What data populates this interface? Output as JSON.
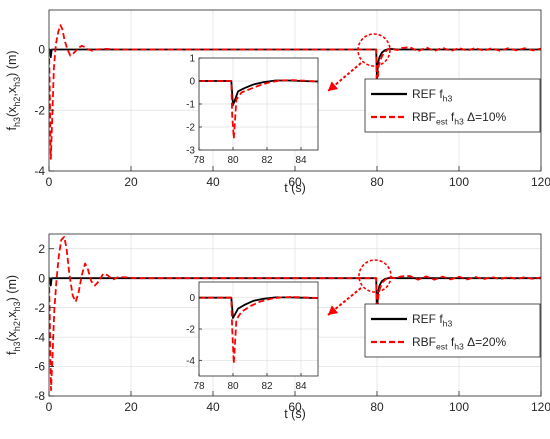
{
  "chart_data": [
    {
      "type": "line",
      "xlabel": "t (s)",
      "ylabel_parts": [
        "f",
        "h3",
        "(x",
        "h2",
        ",x",
        "h3",
        ") (m)"
      ],
      "xlim": [
        0,
        120
      ],
      "ylim": [
        -4,
        1.3
      ],
      "xticks": [
        0,
        20,
        40,
        60,
        80,
        100,
        120
      ],
      "yticks": [
        -4,
        -2,
        0
      ],
      "grid": true,
      "legend_position": "right",
      "series": [
        {
          "name_parts": [
            "REF f",
            "h3",
            ""
          ],
          "color": "#000000",
          "style": "solid",
          "points": [
            [
              0,
              0
            ],
            [
              0.2,
              0
            ],
            [
              0.45,
              -0.25
            ],
            [
              0.65,
              0
            ],
            [
              79.8,
              0
            ],
            [
              79.85,
              -0.3
            ],
            [
              80.0,
              -1.0
            ],
            [
              80.25,
              -0.45
            ],
            [
              80.6,
              -0.25
            ],
            [
              81.2,
              -0.1
            ],
            [
              82,
              -0.02
            ],
            [
              83,
              0.02
            ],
            [
              84,
              0.01
            ],
            [
              85,
              0
            ],
            [
              120,
              0
            ]
          ]
        },
        {
          "name_parts": [
            "RBF",
            "est",
            " f",
            "h3",
            " Δ=10%"
          ],
          "color": "#ff0000",
          "style": "dashed",
          "points": [
            [
              0,
              0
            ],
            [
              0.15,
              -1.0
            ],
            [
              0.45,
              -3.6
            ],
            [
              0.8,
              -2.2
            ],
            [
              1.2,
              -0.6
            ],
            [
              1.7,
              0.2
            ],
            [
              2.3,
              0.6
            ],
            [
              2.8,
              0.8
            ],
            [
              3.3,
              0.65
            ],
            [
              3.8,
              0.3
            ],
            [
              4.5,
              0
            ],
            [
              5.2,
              -0.2
            ],
            [
              5.8,
              -0.15
            ],
            [
              6.5,
              -0.05
            ],
            [
              7.2,
              0.05
            ],
            [
              8.0,
              0.12
            ],
            [
              8.8,
              0.08
            ],
            [
              9.6,
              0
            ],
            [
              10.5,
              -0.04
            ],
            [
              11.5,
              0
            ],
            [
              14,
              0.02
            ],
            [
              17,
              0
            ],
            [
              79.8,
              0
            ],
            [
              79.85,
              -0.5
            ],
            [
              80.05,
              -2.2
            ],
            [
              80.3,
              -0.6
            ],
            [
              80.7,
              -0.4
            ],
            [
              81.3,
              -0.2
            ],
            [
              82,
              -0.08
            ],
            [
              82.8,
              0.02
            ],
            [
              83.5,
              0.04
            ],
            [
              84.3,
              0
            ],
            [
              85,
              -0.02
            ],
            [
              86,
              0.05
            ],
            [
              88,
              0.08
            ],
            [
              90,
              -0.06
            ],
            [
              92,
              0.07
            ],
            [
              94,
              -0.05
            ],
            [
              96,
              0.06
            ],
            [
              98,
              -0.05
            ],
            [
              100,
              0.05
            ],
            [
              102,
              -0.04
            ],
            [
              104,
              0.05
            ],
            [
              106,
              -0.04
            ],
            [
              108,
              0.04
            ],
            [
              110,
              -0.04
            ],
            [
              112,
              0.04
            ],
            [
              114,
              -0.03
            ],
            [
              116,
              0.04
            ],
            [
              118,
              -0.03
            ],
            [
              120,
              0.03
            ]
          ]
        }
      ],
      "inset": {
        "xlim": [
          78,
          85
        ],
        "ylim": [
          -3,
          1
        ],
        "xticks": [
          78,
          80,
          82,
          84
        ],
        "yticks": [
          -3,
          -2,
          -1,
          0,
          1
        ],
        "grid": true,
        "series": [
          {
            "color": "#000000",
            "style": "solid",
            "points": [
              [
                78,
                0
              ],
              [
                79.9,
                0
              ],
              [
                80.0,
                -1.05
              ],
              [
                80.3,
                -0.45
              ],
              [
                80.7,
                -0.3
              ],
              [
                81.2,
                -0.15
              ],
              [
                81.8,
                -0.05
              ],
              [
                82.5,
                0.02
              ],
              [
                83.3,
                0.02
              ],
              [
                84,
                0
              ],
              [
                85,
                -0.02
              ]
            ]
          },
          {
            "color": "#ff0000",
            "style": "dashed",
            "points": [
              [
                78,
                0
              ],
              [
                79.9,
                0
              ],
              [
                79.95,
                -1.5
              ],
              [
                80.05,
                -2.5
              ],
              [
                80.2,
                -0.8
              ],
              [
                80.5,
                -0.5
              ],
              [
                81,
                -0.35
              ],
              [
                81.6,
                -0.18
              ],
              [
                82.2,
                -0.05
              ],
              [
                82.8,
                0.02
              ],
              [
                83.5,
                0.04
              ],
              [
                84.3,
                0.01
              ],
              [
                85,
                -0.02
              ]
            ]
          }
        ]
      }
    },
    {
      "type": "line",
      "xlabel": "t (s)",
      "ylabel_parts": [
        "f",
        "h3",
        "(x",
        "h2",
        ",x",
        "h3",
        ") (m)"
      ],
      "xlim": [
        0,
        120
      ],
      "ylim": [
        -8,
        3
      ],
      "xticks": [
        0,
        20,
        40,
        60,
        80,
        100,
        120
      ],
      "yticks": [
        -8,
        -6,
        -4,
        -2,
        0,
        2
      ],
      "grid": true,
      "legend_position": "right",
      "series": [
        {
          "name_parts": [
            "REF f",
            "h3",
            ""
          ],
          "color": "#000000",
          "style": "solid",
          "points": [
            [
              0,
              0
            ],
            [
              0.2,
              0
            ],
            [
              0.45,
              -0.5
            ],
            [
              0.65,
              0
            ],
            [
              79.8,
              0
            ],
            [
              79.85,
              -0.8
            ],
            [
              80.0,
              -2.4
            ],
            [
              80.25,
              -1.0
            ],
            [
              80.6,
              -0.5
            ],
            [
              81.2,
              -0.2
            ],
            [
              82,
              -0.05
            ],
            [
              83,
              0.02
            ],
            [
              85,
              0
            ],
            [
              120,
              0
            ]
          ]
        },
        {
          "name_parts": [
            "RBF",
            "est",
            " f",
            "h3",
            " Δ=20%"
          ],
          "color": "#ff0000",
          "style": "dashed",
          "points": [
            [
              0,
              0
            ],
            [
              0.15,
              -2.0
            ],
            [
              0.5,
              -7.6
            ],
            [
              0.9,
              -5.0
            ],
            [
              1.3,
              -2.2
            ],
            [
              1.8,
              -0.2
            ],
            [
              2.4,
              1.5
            ],
            [
              3.0,
              2.6
            ],
            [
              3.7,
              2.8
            ],
            [
              4.3,
              2.0
            ],
            [
              5.0,
              0.2
            ],
            [
              5.8,
              -1.2
            ],
            [
              6.5,
              -1.6
            ],
            [
              7.2,
              -1.0
            ],
            [
              8.0,
              0.2
            ],
            [
              8.8,
              1.0
            ],
            [
              9.5,
              0.6
            ],
            [
              10.3,
              -0.2
            ],
            [
              11.2,
              -0.5
            ],
            [
              12.2,
              -0.2
            ],
            [
              13.2,
              0.3
            ],
            [
              14.3,
              0.2
            ],
            [
              15.5,
              -0.1
            ],
            [
              17,
              0.08
            ],
            [
              19,
              0.05
            ],
            [
              21,
              0
            ],
            [
              79.8,
              0
            ],
            [
              79.85,
              -1.0
            ],
            [
              80.05,
              -4.0
            ],
            [
              80.3,
              -1.3
            ],
            [
              80.7,
              -0.7
            ],
            [
              81.3,
              -0.3
            ],
            [
              82,
              -0.1
            ],
            [
              82.8,
              0.05
            ],
            [
              83.5,
              0.06
            ],
            [
              84.3,
              0
            ],
            [
              85,
              0.05
            ],
            [
              86,
              0.12
            ],
            [
              88,
              0.15
            ],
            [
              90,
              -0.1
            ],
            [
              92,
              0.12
            ],
            [
              94,
              -0.1
            ],
            [
              96,
              0.1
            ],
            [
              98,
              -0.08
            ],
            [
              100,
              0.1
            ],
            [
              102,
              -0.08
            ],
            [
              104,
              0.08
            ],
            [
              106,
              -0.07
            ],
            [
              108,
              0.08
            ],
            [
              110,
              -0.06
            ],
            [
              112,
              0.07
            ],
            [
              114,
              -0.05
            ],
            [
              116,
              0.06
            ],
            [
              118,
              -0.05
            ],
            [
              120,
              0.05
            ]
          ]
        }
      ],
      "inset": {
        "xlim": [
          78,
          85
        ],
        "ylim": [
          -5,
          1
        ],
        "xticks": [
          78,
          80,
          82,
          84
        ],
        "yticks": [
          -4,
          -2,
          0
        ],
        "grid": true,
        "series": [
          {
            "color": "#000000",
            "style": "solid",
            "points": [
              [
                78,
                0
              ],
              [
                79.9,
                0
              ],
              [
                80.0,
                -1.3
              ],
              [
                80.3,
                -0.7
              ],
              [
                80.7,
                -0.45
              ],
              [
                81.2,
                -0.2
              ],
              [
                81.8,
                -0.07
              ],
              [
                82.5,
                0.02
              ],
              [
                83.3,
                0.02
              ],
              [
                84,
                0
              ],
              [
                85,
                -0.02
              ]
            ]
          },
          {
            "color": "#ff0000",
            "style": "dashed",
            "points": [
              [
                78,
                0
              ],
              [
                79.9,
                0
              ],
              [
                79.95,
                -2.0
              ],
              [
                80.05,
                -4.2
              ],
              [
                80.2,
                -1.4
              ],
              [
                80.5,
                -0.9
              ],
              [
                81,
                -0.55
              ],
              [
                81.6,
                -0.25
              ],
              [
                82.2,
                -0.08
              ],
              [
                82.8,
                0.02
              ],
              [
                83.5,
                0.04
              ],
              [
                84.3,
                0.01
              ],
              [
                85,
                -0.02
              ]
            ]
          }
        ]
      }
    }
  ]
}
